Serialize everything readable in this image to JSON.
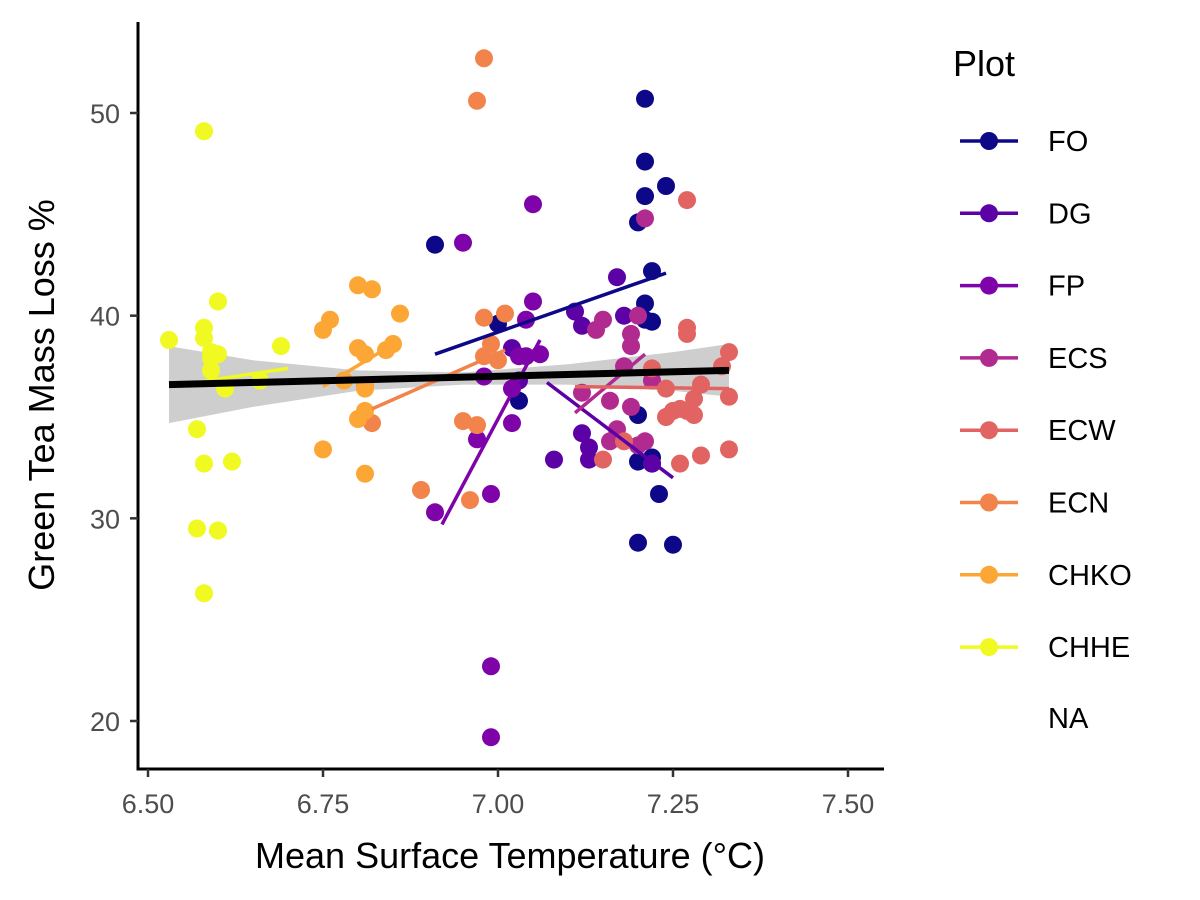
{
  "chart_data": {
    "type": "scatter",
    "title": "",
    "xlabel": "Mean Surface Temperature (°C)",
    "ylabel": "Green Tea Mass Loss %",
    "xlim": [
      6.5,
      7.5
    ],
    "ylim": [
      20,
      53
    ],
    "x_ticks": [
      "6.50",
      "6.75",
      "7.00",
      "7.25",
      "7.50"
    ],
    "y_ticks": [
      "20",
      "30",
      "40",
      "50"
    ],
    "grid": false,
    "legend_title": "Plot",
    "legend_position": "right",
    "legend_extra": "NA",
    "overall_fit": {
      "x": [
        6.53,
        7.33
      ],
      "y": [
        36.6,
        37.3
      ],
      "ci_x": [
        6.53,
        6.65,
        6.8,
        6.95,
        7.1,
        7.25,
        7.33
      ],
      "ci_upper": [
        38.5,
        37.8,
        37.3,
        37.2,
        37.6,
        38.2,
        38.6
      ],
      "ci_lower": [
        34.7,
        35.5,
        36.3,
        36.6,
        36.6,
        36.3,
        36.0
      ],
      "color": "#000000",
      "band_color": "#bdbdbd"
    },
    "series": [
      {
        "name": "FO",
        "color": "#0d0887",
        "x": [
          6.91,
          7.0,
          7.21,
          7.21,
          7.24,
          7.21,
          7.2,
          7.22,
          7.21,
          7.22,
          7.21,
          7.2,
          7.03,
          7.2,
          7.22,
          7.25,
          7.23,
          7.2,
          7.22
        ],
        "y": [
          43.5,
          39.6,
          50.7,
          47.6,
          46.4,
          45.9,
          44.6,
          42.2,
          40.6,
          39.7,
          39.8,
          35.1,
          35.8,
          28.8,
          33.0,
          28.7,
          31.2,
          32.8,
          32.7
        ],
        "fit": {
          "x": [
            6.91,
            7.24
          ],
          "y": [
            38.1,
            42.1
          ]
        }
      },
      {
        "name": "DG",
        "color": "#5c01a6",
        "x": [
          7.11,
          7.12,
          7.12,
          7.13,
          7.13,
          7.08,
          7.17,
          7.18,
          7.22,
          7.02,
          7.03
        ],
        "y": [
          40.2,
          39.5,
          34.2,
          33.5,
          32.9,
          32.9,
          41.9,
          40.0,
          32.7,
          38.4,
          36.8
        ],
        "fit": {
          "x": [
            7.07,
            7.25
          ],
          "y": [
            36.7,
            32.0
          ]
        }
      },
      {
        "name": "FP",
        "color": "#7e03a8",
        "x": [
          6.91,
          6.95,
          6.97,
          6.98,
          6.99,
          6.99,
          6.99,
          7.02,
          7.03,
          7.04,
          7.05,
          7.05,
          7.06,
          7.04,
          7.02
        ],
        "y": [
          30.3,
          43.6,
          33.9,
          37.0,
          31.2,
          22.7,
          19.2,
          34.7,
          38.0,
          39.8,
          40.7,
          45.5,
          38.1,
          38.0,
          36.4
        ],
        "fit": {
          "x": [
            6.92,
            7.06
          ],
          "y": [
            29.7,
            38.8
          ]
        }
      },
      {
        "name": "ECS",
        "color": "#b12a90",
        "x": [
          7.12,
          7.14,
          7.15,
          7.16,
          7.17,
          7.18,
          7.19,
          7.19,
          7.2,
          7.2,
          7.21,
          7.21,
          7.22,
          7.16,
          7.19
        ],
        "y": [
          36.2,
          39.3,
          39.8,
          33.8,
          34.4,
          37.5,
          39.1,
          38.5,
          40.0,
          33.6,
          33.8,
          44.8,
          36.8,
          35.8,
          35.5
        ],
        "fit": {
          "x": [
            7.11,
            7.21
          ],
          "y": [
            35.2,
            38.1
          ]
        }
      },
      {
        "name": "ECW",
        "color": "#e16462",
        "x": [
          7.15,
          7.18,
          7.22,
          7.24,
          7.26,
          7.26,
          7.27,
          7.27,
          7.27,
          7.28,
          7.28,
          7.29,
          7.29,
          7.32,
          7.33,
          7.33,
          7.33,
          7.27,
          7.25,
          7.24
        ],
        "y": [
          32.9,
          33.8,
          37.4,
          36.4,
          32.7,
          35.4,
          39.4,
          39.1,
          45.7,
          35.9,
          35.1,
          33.1,
          36.6,
          37.5,
          38.2,
          36.0,
          33.4,
          35.3,
          35.3,
          35.0
        ],
        "fit": {
          "x": [
            7.11,
            7.33
          ],
          "y": [
            36.5,
            36.4
          ]
        }
      },
      {
        "name": "ECN",
        "color": "#f2844b",
        "x": [
          6.98,
          6.97,
          6.82,
          6.89,
          6.95,
          6.96,
          6.97,
          6.98,
          6.99,
          7.0,
          7.01,
          6.98,
          6.81
        ],
        "y": [
          52.7,
          50.6,
          34.7,
          31.4,
          34.8,
          30.9,
          34.6,
          39.9,
          38.6,
          37.8,
          40.1,
          38.0,
          36.5
        ],
        "fit": {
          "x": [
            6.82,
            7.01
          ],
          "y": [
            35.4,
            38.3
          ]
        }
      },
      {
        "name": "CHKO",
        "color": "#fca636",
        "x": [
          6.75,
          6.75,
          6.76,
          6.78,
          6.8,
          6.8,
          6.81,
          6.81,
          6.82,
          6.8,
          6.81,
          6.84,
          6.85,
          6.86,
          6.81
        ],
        "y": [
          39.3,
          33.4,
          39.8,
          36.8,
          41.5,
          38.4,
          38.1,
          36.4,
          41.3,
          34.9,
          35.3,
          38.3,
          38.6,
          40.1,
          32.2
        ],
        "fit": {
          "x": [
            6.75,
            6.86
          ],
          "y": [
            36.5,
            38.8
          ]
        }
      },
      {
        "name": "CHHE",
        "color": "#f0f921",
        "x": [
          6.53,
          6.58,
          6.57,
          6.58,
          6.58,
          6.59,
          6.59,
          6.59,
          6.6,
          6.58,
          6.58,
          6.57,
          6.6,
          6.61,
          6.62,
          6.66,
          6.69,
          6.6
        ],
        "y": [
          38.8,
          49.1,
          34.4,
          39.4,
          38.9,
          37.9,
          37.3,
          38.2,
          40.7,
          32.7,
          26.3,
          29.5,
          29.4,
          36.4,
          32.8,
          36.8,
          38.5,
          38.1
        ],
        "fit": {
          "x": [
            6.53,
            6.7
          ],
          "y": [
            36.5,
            37.4
          ]
        }
      }
    ]
  }
}
